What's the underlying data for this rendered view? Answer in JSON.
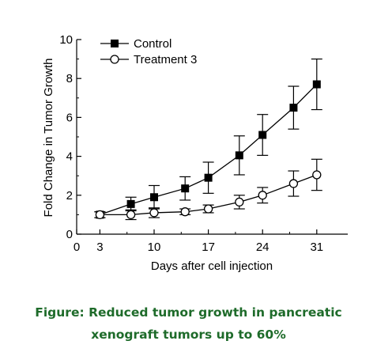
{
  "chart_data": {
    "type": "line",
    "title": "",
    "xlabel": "Days after cell injection",
    "ylabel": "Fold Change in Tumor Growth",
    "xlim": [
      0,
      35
    ],
    "ylim": [
      0,
      10
    ],
    "x_ticks": [
      0,
      3,
      10,
      17,
      24,
      31
    ],
    "y_ticks": [
      0,
      2,
      4,
      6,
      8,
      10
    ],
    "grid": false,
    "legend_placement": "top-left",
    "series": [
      {
        "name": "Control",
        "marker": "filled-square",
        "color": "#000000",
        "x": [
          3,
          7,
          10,
          14,
          17,
          21,
          24,
          28,
          31
        ],
        "y": [
          1.0,
          1.55,
          1.9,
          2.35,
          2.9,
          4.05,
          5.1,
          6.5,
          7.7
        ],
        "err": [
          0.15,
          0.35,
          0.6,
          0.6,
          0.8,
          1.0,
          1.05,
          1.1,
          1.3
        ]
      },
      {
        "name": "Treatment 3",
        "marker": "open-circle",
        "color": "#000000",
        "x": [
          3,
          7,
          10,
          14,
          17,
          21,
          24,
          28,
          31
        ],
        "y": [
          1.0,
          1.0,
          1.1,
          1.15,
          1.3,
          1.65,
          2.0,
          2.6,
          3.05
        ],
        "err": [
          0.15,
          0.25,
          0.25,
          0.15,
          0.2,
          0.35,
          0.4,
          0.65,
          0.8
        ]
      }
    ]
  },
  "caption": {
    "line1": "Figure: Reduced tumor growth in pancreatic",
    "line2": "xenograft tumors up to 60%"
  }
}
